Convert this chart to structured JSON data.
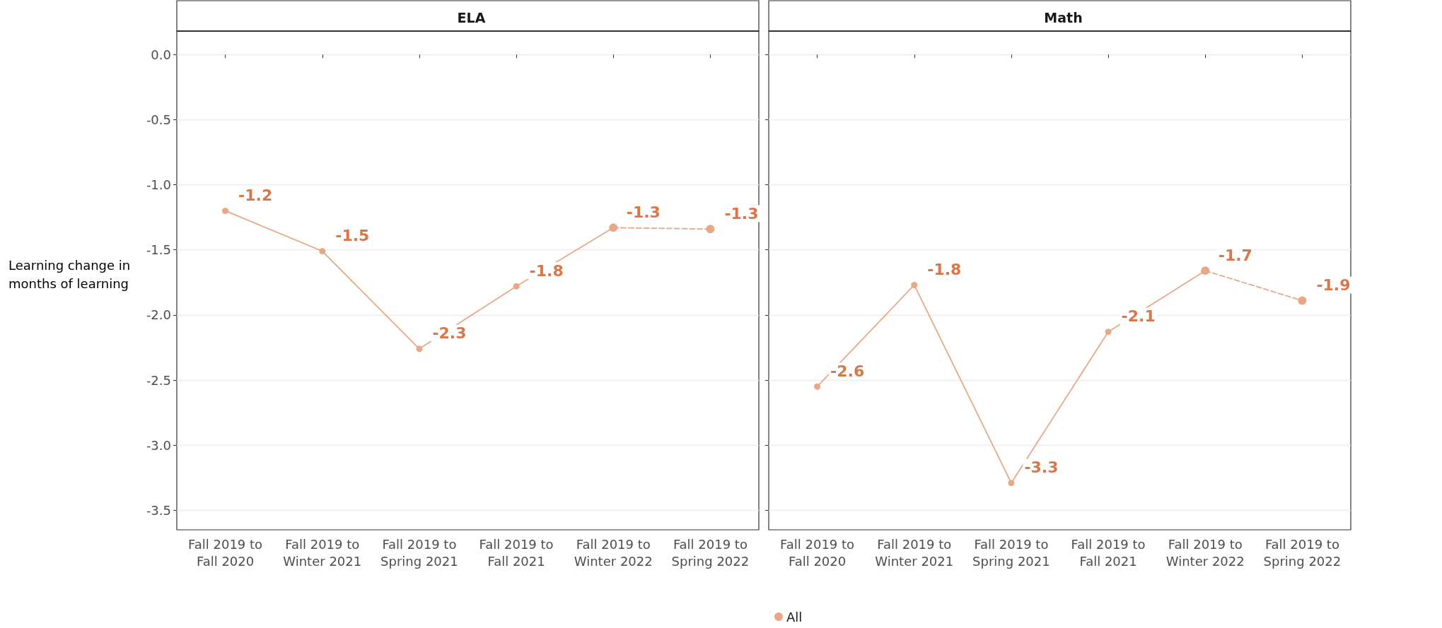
{
  "chart_data": [
    {
      "type": "line",
      "title": "ELA",
      "ylabel": "Learning change in months of learning",
      "categories": [
        "Fall 2019 to Fall 2020",
        "Fall 2019 to Winter 2021",
        "Fall 2019 to Spring 2021",
        "Fall 2019 to Fall 2021",
        "Fall 2019 to Winter 2022",
        "Fall 2019 to Spring 2022"
      ],
      "series": [
        {
          "color": "#e8a887",
          "line_style": "solid",
          "values": [
            -1.2,
            -1.51,
            -2.26,
            -1.78,
            -1.33,
            null
          ],
          "value_labels": [
            "-1.2",
            "-1.5",
            "-2.3",
            "-1.8",
            "-1.3",
            null
          ]
        },
        {
          "color": "#e8a887",
          "line_style": "dashed",
          "values": [
            null,
            null,
            null,
            null,
            -1.33,
            -1.34
          ],
          "value_labels": [
            null,
            null,
            null,
            null,
            null,
            "-1.3"
          ]
        }
      ],
      "ylim": [
        -3.65,
        0.18
      ],
      "yticks": [
        {
          "value": 0,
          "label": "0.0"
        },
        -0.5,
        {
          "value": -1,
          "label": "-1.0"
        },
        -1.5,
        {
          "value": -2,
          "label": "-2.0"
        },
        -2.5,
        {
          "value": -3,
          "label": "-3.0"
        },
        -3.5
      ],
      "grid": "y",
      "marker": "circle"
    },
    {
      "type": "line",
      "title": "Math",
      "categories": [
        "Fall 2019 to Fall 2020",
        "Fall 2019 to Winter 2021",
        "Fall 2019 to Spring 2021",
        "Fall 2019 to Fall 2021",
        "Fall 2019 to Winter 2022",
        "Fall 2019 to Spring 2022"
      ],
      "series": [
        {
          "name": "All",
          "color": "#e8a887",
          "line_style": "solid",
          "values": [
            -2.55,
            -1.77,
            -3.29,
            -2.13,
            -1.66,
            null
          ],
          "value_labels": [
            "-2.6",
            "-1.8",
            "-3.3",
            "-2.1",
            "-1.7",
            null
          ]
        },
        {
          "color": "#e8a887",
          "line_style": "dashed",
          "values": [
            null,
            null,
            null,
            null,
            -1.66,
            -1.89
          ],
          "value_labels": [
            null,
            null,
            null,
            null,
            null,
            "-1.9"
          ]
        }
      ],
      "ylim": [
        -3.65,
        0.18
      ],
      "yticks": [
        0,
        -0.5,
        -1,
        -1.5,
        -2,
        -2.5,
        -3,
        -3.5
      ],
      "grid": "y",
      "marker": "circle",
      "tick_labels": "x",
      "legend": "bottom"
    }
  ]
}
